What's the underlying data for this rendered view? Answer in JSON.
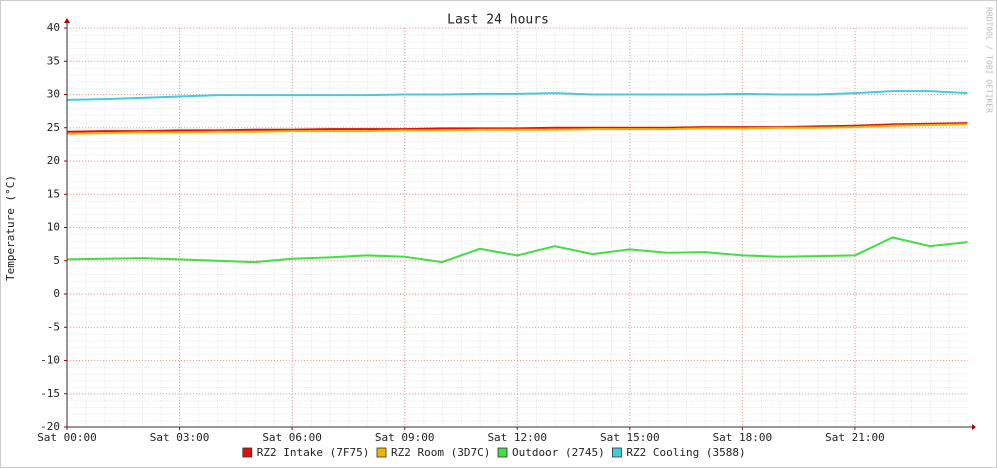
{
  "chart_data": {
    "type": "line",
    "title": "Last 24 hours",
    "y_label": "Temperature (°C)",
    "watermark": "RRDTOOL / TOBI OETIKER",
    "x": [
      0,
      1,
      2,
      3,
      4,
      5,
      6,
      7,
      8,
      9,
      10,
      11,
      12,
      13,
      14,
      15,
      16,
      17,
      18,
      19,
      20,
      21,
      22,
      23,
      24
    ],
    "xlim": [
      0,
      24
    ],
    "xticks": [
      {
        "value": 0,
        "label": "Sat 00:00"
      },
      {
        "value": 3,
        "label": "Sat 03:00"
      },
      {
        "value": 6,
        "label": "Sat 06:00"
      },
      {
        "value": 9,
        "label": "Sat 09:00"
      },
      {
        "value": 12,
        "label": "Sat 12:00"
      },
      {
        "value": 15,
        "label": "Sat 15:00"
      },
      {
        "value": 18,
        "label": "Sat 18:00"
      },
      {
        "value": 21,
        "label": "Sat 21:00"
      }
    ],
    "ylim": [
      -20,
      40
    ],
    "yticks": [
      -20,
      -15,
      -10,
      -5,
      0,
      5,
      10,
      15,
      20,
      25,
      30,
      35,
      40
    ],
    "grid": true,
    "legend": "bottom",
    "series": [
      {
        "name": "RZ2 Intake (7F75)",
        "color": "#e01010",
        "values": [
          24.4,
          24.5,
          24.5,
          24.6,
          24.6,
          24.7,
          24.7,
          24.8,
          24.8,
          24.8,
          24.9,
          24.9,
          24.9,
          25.0,
          25.0,
          25.0,
          25.0,
          25.1,
          25.1,
          25.1,
          25.2,
          25.3,
          25.5,
          25.6,
          25.7
        ]
      },
      {
        "name": "RZ2 Room (3D7C)",
        "color": "#f0b400",
        "values": [
          24.1,
          24.2,
          24.3,
          24.3,
          24.4,
          24.4,
          24.5,
          24.5,
          24.5,
          24.6,
          24.6,
          24.7,
          24.7,
          24.7,
          24.8,
          24.8,
          24.8,
          24.9,
          24.9,
          25.0,
          25.0,
          25.1,
          25.3,
          25.4,
          25.5
        ]
      },
      {
        "name": "Outdoor (2745)",
        "color": "#44dd44",
        "values": [
          5.2,
          5.3,
          5.4,
          5.2,
          5.0,
          4.8,
          5.3,
          5.5,
          5.8,
          5.6,
          4.8,
          6.8,
          5.8,
          7.2,
          6.0,
          6.7,
          6.2,
          6.3,
          5.8,
          5.6,
          5.7,
          5.8,
          8.5,
          7.2,
          7.8
        ]
      },
      {
        "name": "RZ2 Cooling (3588)",
        "color": "#44ccdd",
        "values": [
          29.2,
          29.3,
          29.5,
          29.7,
          29.9,
          29.9,
          29.9,
          29.9,
          29.9,
          30.0,
          30.0,
          30.1,
          30.1,
          30.2,
          30.0,
          30.0,
          30.0,
          30.0,
          30.1,
          30.0,
          30.0,
          30.2,
          30.5,
          30.5,
          30.2
        ]
      }
    ]
  }
}
